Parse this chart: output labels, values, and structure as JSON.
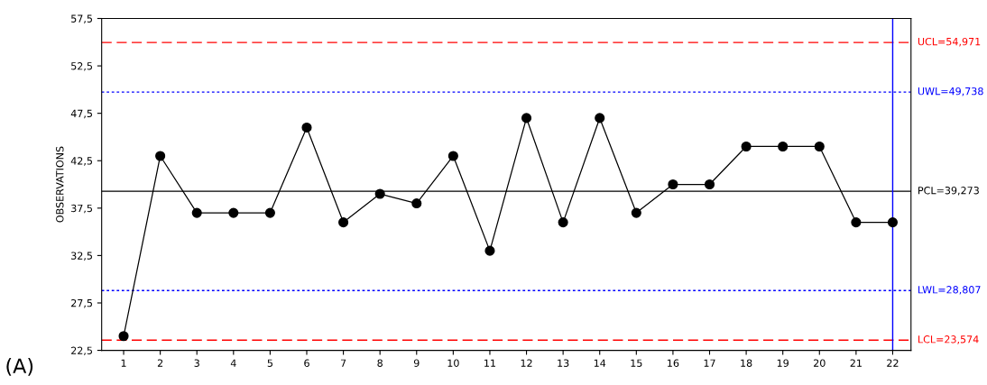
{
  "chart_data": {
    "type": "line",
    "ylabel": "OBSERVATIONS",
    "x": [
      1,
      2,
      3,
      4,
      5,
      6,
      7,
      8,
      9,
      10,
      11,
      12,
      13,
      14,
      15,
      16,
      17,
      18,
      19,
      20,
      21,
      22
    ],
    "series": [
      {
        "color": "#000000",
        "values": [
          24,
          43,
          37,
          37,
          37,
          46,
          36,
          39,
          38,
          43,
          33,
          47,
          36,
          47,
          37,
          40,
          40,
          44,
          44,
          44,
          36,
          36
        ]
      }
    ],
    "marker": "circle",
    "line_style": "solid",
    "grid": false,
    "xlim": [
      0.4,
      22.5
    ],
    "xticks": [
      1,
      2,
      3,
      4,
      5,
      6,
      7,
      8,
      9,
      10,
      11,
      12,
      13,
      14,
      15,
      16,
      17,
      18,
      19,
      20,
      21,
      22
    ],
    "ylim": [
      22.5,
      57.5
    ],
    "yticks": [
      {
        "value": 22.5,
        "label": "22,5"
      },
      {
        "value": 27.5,
        "label": "27,5"
      },
      {
        "value": 32.5,
        "label": "32,5"
      },
      {
        "value": 37.5,
        "label": "37,5"
      },
      {
        "value": 42.5,
        "label": "42,5"
      },
      {
        "value": 47.5,
        "label": "47,5"
      },
      {
        "value": 52.5,
        "label": "52,5"
      },
      {
        "value": 57.5,
        "label": "57,5"
      }
    ],
    "ref_lines": [
      {
        "axis": "y",
        "value": 54.971,
        "label": "UCL=54,971",
        "color": "#ff0000",
        "line_style": "dashed"
      },
      {
        "axis": "y",
        "value": 49.738,
        "label": "UWL=49,738",
        "color": "#0000ff",
        "line_style": "dotted"
      },
      {
        "axis": "y",
        "value": 39.273,
        "label": "PCL=39,273",
        "color": "#000000",
        "line_style": "solid"
      },
      {
        "axis": "y",
        "value": 28.807,
        "label": "LWL=28,807",
        "color": "#0000ff",
        "line_style": "dotted"
      },
      {
        "axis": "y",
        "value": 23.574,
        "label": "LCL=23,574",
        "color": "#ff0000",
        "line_style": "dashed"
      },
      {
        "axis": "x",
        "value": 22,
        "color": "#0000ff",
        "line_style": "solid"
      }
    ],
    "annotations": [
      "(A)"
    ]
  }
}
